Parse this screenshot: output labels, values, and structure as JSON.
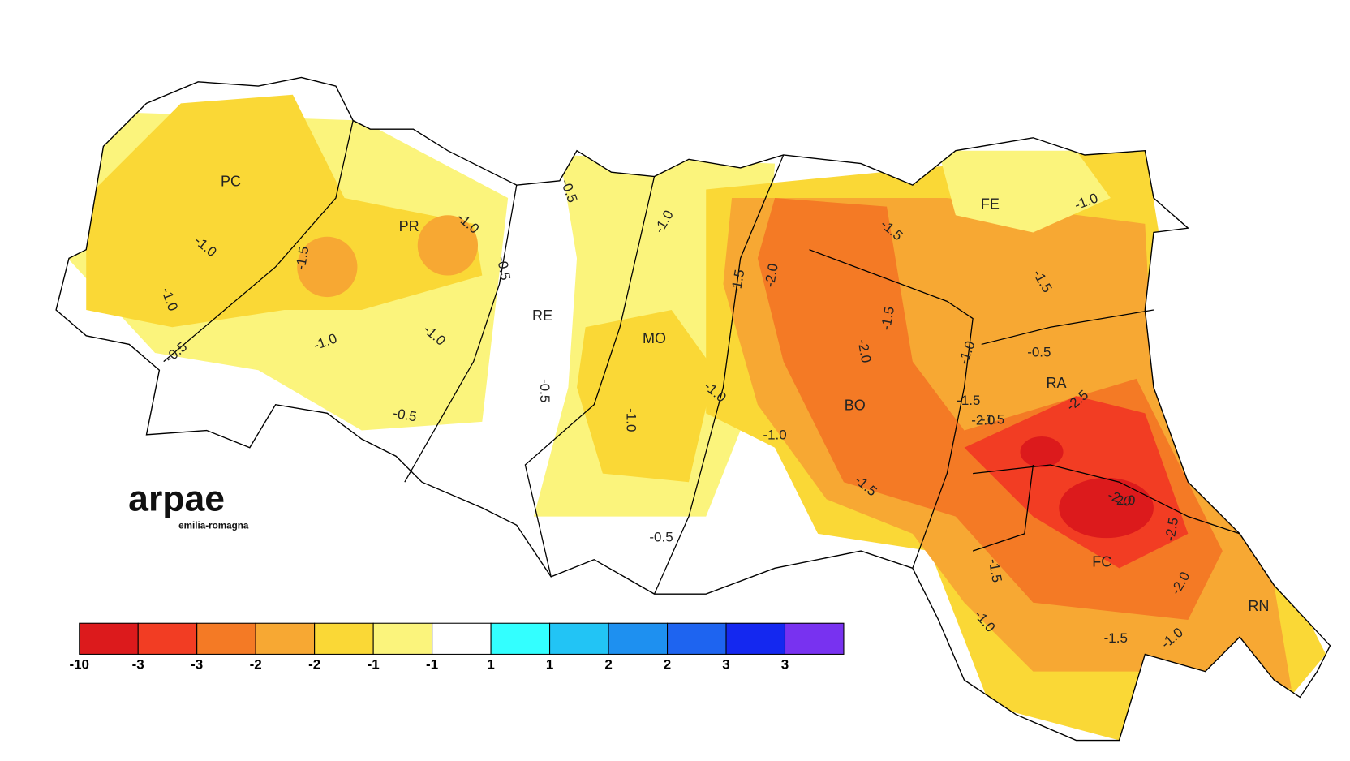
{
  "provinces": [
    "PC",
    "PR",
    "RE",
    "MO",
    "BO",
    "FE",
    "RA",
    "FC",
    "RN"
  ],
  "contour_labels": [
    "-1.0",
    "-1.0",
    "-0.5",
    "-1.5",
    "-1.0",
    "-1.0",
    "-1.0",
    "-0.5",
    "-0.5",
    "-0.5",
    "-0.5",
    "-0.5",
    "-1.0",
    "-1.0",
    "-1.0",
    "-1.0",
    "-1.5",
    "-2.0",
    "-1.5",
    "-1.5",
    "-2.0",
    "-1.5",
    "-1.0",
    "-1.5",
    "-1.5",
    "-1.0",
    "-1.5",
    "-2.0",
    "-1.5",
    "-2.5",
    "-2.0",
    "-2.5",
    "-2.0",
    "-2.0",
    "-1.0",
    "-1.5",
    "-1.0",
    "-0.5"
  ],
  "logo": {
    "name": "arpae",
    "region": "emilia-romagna"
  },
  "legend": {
    "labels": [
      "-10",
      "-3",
      "-3",
      "-2",
      "-2",
      "-1",
      "-1",
      "1",
      "1",
      "2",
      "2",
      "3",
      "3"
    ],
    "colors": [
      "#dc1a1c",
      "#f23d23",
      "#f47a25",
      "#f7a833",
      "#fad836",
      "#fbf47c",
      "#ffffff",
      "#33ffff",
      "#22c4f5",
      "#1e90f0",
      "#1e64f0",
      "#1428f0",
      "#7832f0"
    ]
  }
}
